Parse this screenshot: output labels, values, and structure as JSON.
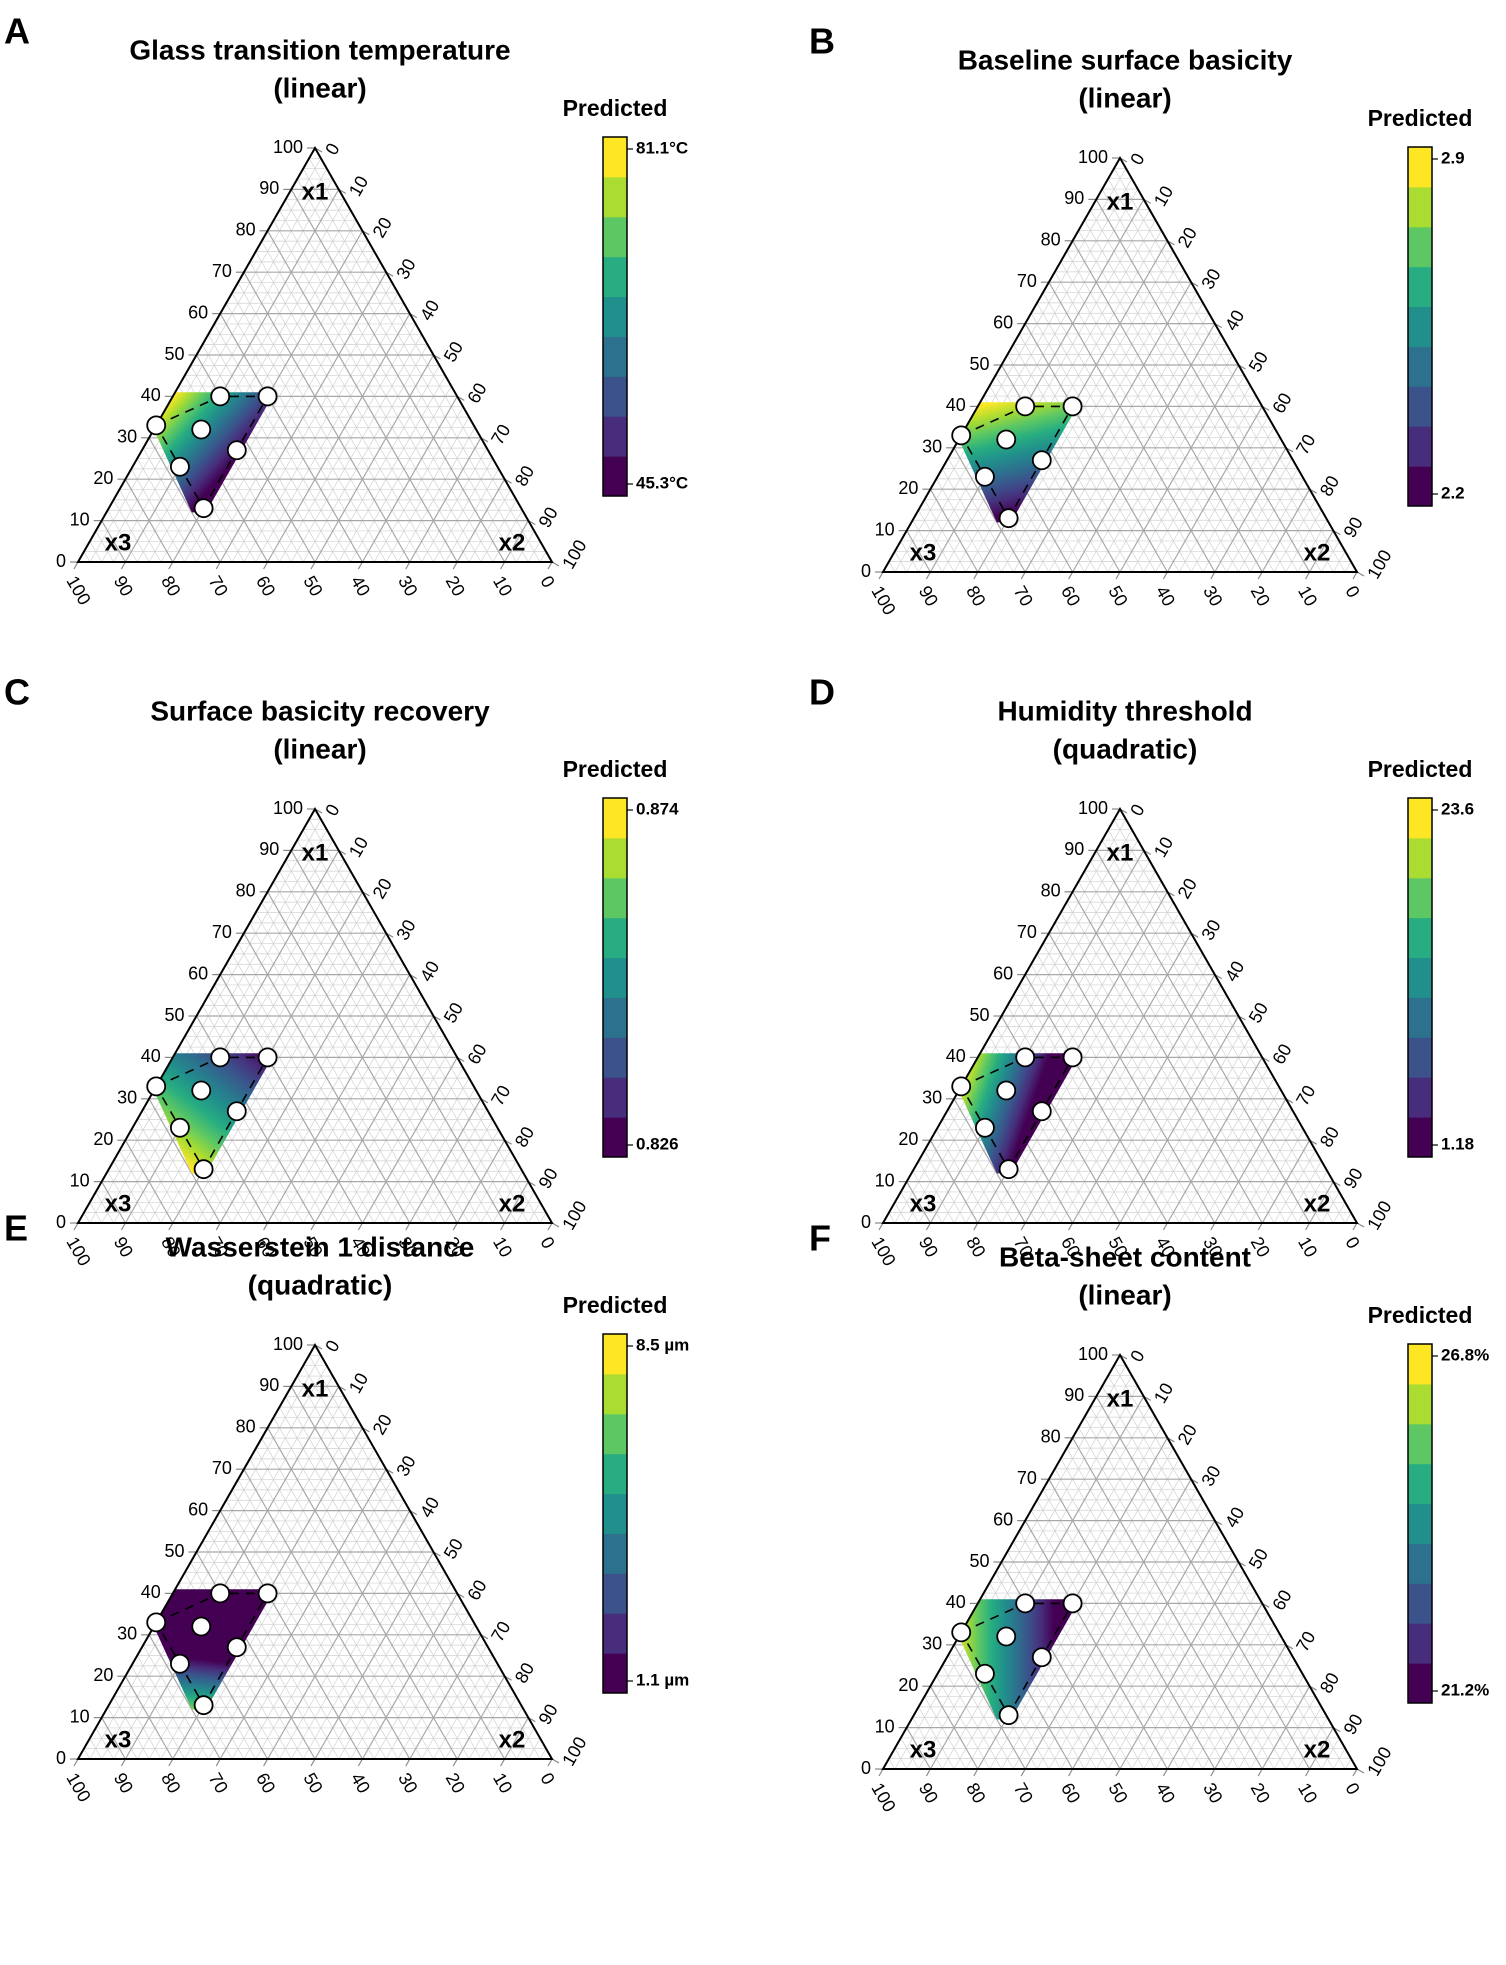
{
  "chart_data": [
    {
      "type": "ternary",
      "panel": "A",
      "title": "Glass transition temperature",
      "subtitle": "(linear)",
      "axes": [
        {
          "label": "x1",
          "ticks": [
            0,
            10,
            20,
            30,
            40,
            50,
            60,
            70,
            80,
            90,
            100
          ]
        },
        {
          "label": "x2",
          "ticks": [
            0,
            10,
            20,
            30,
            40,
            50,
            60,
            70,
            80,
            90,
            100
          ]
        },
        {
          "label": "x3",
          "ticks": [
            0,
            10,
            20,
            30,
            40,
            50,
            60,
            70,
            80,
            90,
            100
          ]
        }
      ],
      "points": {
        "x1": [
          40,
          40,
          33,
          32,
          23,
          27,
          13
        ],
        "x2": [
          10,
          20,
          0,
          10,
          10,
          20,
          20
        ],
        "x3": [
          50,
          40,
          67,
          58,
          67,
          53,
          67
        ]
      },
      "surface": {
        "region": {
          "x1": [
            41,
            41,
            12,
            12,
            32
          ],
          "x2": [
            0,
            21,
            21,
            18,
            0
          ],
          "x3": [
            59,
            38,
            67,
            70,
            68
          ]
        },
        "low_at": [
          26,
          21,
          53
        ],
        "high_at": [
          40,
          0,
          60
        ]
      },
      "colorbar": {
        "title": "Predicted",
        "ticks": [
          {
            "value": 45.3,
            "label": "45.3°C"
          },
          {
            "value": 81.1,
            "label": "81.1°C"
          }
        ],
        "colors": [
          "#440154",
          "#472d7b",
          "#3b528b",
          "#2c728e",
          "#21908c",
          "#27ad81",
          "#5dc863",
          "#aadc32",
          "#fde725"
        ]
      }
    },
    {
      "type": "ternary",
      "panel": "B",
      "title": "Baseline surface basicity",
      "subtitle": "(linear)",
      "axes": [
        {
          "label": "x1",
          "ticks": [
            0,
            10,
            20,
            30,
            40,
            50,
            60,
            70,
            80,
            90,
            100
          ]
        },
        {
          "label": "x2",
          "ticks": [
            0,
            10,
            20,
            30,
            40,
            50,
            60,
            70,
            80,
            90,
            100
          ]
        },
        {
          "label": "x3",
          "ticks": [
            0,
            10,
            20,
            30,
            40,
            50,
            60,
            70,
            80,
            90,
            100
          ]
        }
      ],
      "points": {
        "x1": [
          40,
          40,
          33,
          32,
          23,
          27,
          13
        ],
        "x2": [
          10,
          20,
          0,
          10,
          10,
          20,
          20
        ],
        "x3": [
          50,
          40,
          67,
          58,
          67,
          53,
          67
        ]
      },
      "surface": {
        "region": {
          "x1": [
            41,
            41,
            12,
            12,
            32
          ],
          "x2": [
            0,
            21,
            21,
            18,
            0
          ],
          "x3": [
            59,
            38,
            67,
            70,
            68
          ]
        },
        "low_at": [
          14,
          19,
          67
        ],
        "high_at": [
          40,
          0,
          60
        ]
      },
      "colorbar": {
        "title": "Predicted",
        "ticks": [
          2.2,
          2.9
        ],
        "colors": [
          "#440154",
          "#472d7b",
          "#3b528b",
          "#2c728e",
          "#21908c",
          "#27ad81",
          "#5dc863",
          "#aadc32",
          "#fde725"
        ]
      }
    },
    {
      "type": "ternary",
      "panel": "C",
      "title": "Surface basicity recovery",
      "subtitle": "(linear)",
      "axes": [
        {
          "label": "x1",
          "ticks": [
            0,
            10,
            20,
            30,
            40,
            50,
            60,
            70,
            80,
            90,
            100
          ]
        },
        {
          "label": "x2",
          "ticks": [
            0,
            10,
            20,
            30,
            40,
            50,
            60,
            70,
            80,
            90,
            100
          ]
        },
        {
          "label": "x3",
          "ticks": [
            0,
            10,
            20,
            30,
            40,
            50,
            60,
            70,
            80,
            90,
            100
          ]
        }
      ],
      "points": {
        "x1": [
          40,
          40,
          33,
          32,
          23,
          27,
          13
        ],
        "x2": [
          10,
          20,
          0,
          10,
          10,
          20,
          20
        ],
        "x3": [
          50,
          40,
          67,
          58,
          67,
          53,
          67
        ]
      },
      "surface": {
        "region": {
          "x1": [
            41,
            41,
            12,
            12,
            32
          ],
          "x2": [
            0,
            21,
            21,
            18,
            0
          ],
          "x3": [
            59,
            38,
            67,
            70,
            68
          ]
        },
        "low_at": [
          40,
          21,
          39
        ],
        "high_at": [
          14,
          16,
          70
        ]
      },
      "colorbar": {
        "title": "Predicted",
        "ticks": [
          0.826,
          0.874
        ],
        "colors": [
          "#440154",
          "#472d7b",
          "#3b528b",
          "#2c728e",
          "#21908c",
          "#27ad81",
          "#5dc863",
          "#aadc32",
          "#fde725"
        ]
      }
    },
    {
      "type": "ternary",
      "panel": "D",
      "title": "Humidity threshold",
      "subtitle": "(quadratic)",
      "axes": [
        {
          "label": "x1",
          "ticks": [
            0,
            10,
            20,
            30,
            40,
            50,
            60,
            70,
            80,
            90,
            100
          ]
        },
        {
          "label": "x2",
          "ticks": [
            0,
            10,
            20,
            30,
            40,
            50,
            60,
            70,
            80,
            90,
            100
          ]
        },
        {
          "label": "x3",
          "ticks": [
            0,
            10,
            20,
            30,
            40,
            50,
            60,
            70,
            80,
            90,
            100
          ]
        }
      ],
      "points": {
        "x1": [
          40,
          40,
          33,
          32,
          23,
          27,
          13
        ],
        "x2": [
          10,
          20,
          0,
          10,
          10,
          20,
          20
        ],
        "x3": [
          50,
          40,
          67,
          58,
          67,
          53,
          67
        ]
      },
      "surface": {
        "region": {
          "x1": [
            41,
            41,
            12,
            12,
            32
          ],
          "x2": [
            0,
            21,
            21,
            18,
            0
          ],
          "x3": [
            59,
            38,
            67,
            70,
            68
          ]
        },
        "low_at": [
          24,
          18,
          58
        ],
        "high_at": [
          30,
          0,
          70
        ]
      },
      "colorbar": {
        "title": "Predicted",
        "ticks": [
          1.18,
          23.6
        ],
        "colors": [
          "#440154",
          "#472d7b",
          "#3b528b",
          "#2c728e",
          "#21908c",
          "#27ad81",
          "#5dc863",
          "#aadc32",
          "#fde725"
        ]
      }
    },
    {
      "type": "ternary",
      "panel": "E",
      "title": "Wasserstein 1 distance",
      "subtitle": "(quadratic)",
      "axes": [
        {
          "label": "x1",
          "ticks": [
            0,
            10,
            20,
            30,
            40,
            50,
            60,
            70,
            80,
            90,
            100
          ]
        },
        {
          "label": "x2",
          "ticks": [
            0,
            10,
            20,
            30,
            40,
            50,
            60,
            70,
            80,
            90,
            100
          ]
        },
        {
          "label": "x3",
          "ticks": [
            0,
            10,
            20,
            30,
            40,
            50,
            60,
            70,
            80,
            90,
            100
          ]
        }
      ],
      "points": {
        "x1": [
          40,
          40,
          33,
          32,
          23,
          27,
          13
        ],
        "x2": [
          10,
          20,
          0,
          10,
          10,
          20,
          20
        ],
        "x3": [
          50,
          40,
          67,
          58,
          67,
          53,
          67
        ]
      },
      "surface": {
        "region": {
          "x1": [
            41,
            41,
            12,
            12,
            32
          ],
          "x2": [
            0,
            21,
            21,
            18,
            0
          ],
          "x3": [
            59,
            38,
            67,
            70,
            68
          ]
        },
        "low_at": [
          24,
          14,
          62
        ],
        "high_at": [
          9,
          20,
          71
        ]
      },
      "colorbar": {
        "title": "Predicted",
        "ticks": [
          {
            "value": 1.1,
            "label": "1.1 µm"
          },
          {
            "value": 8.5,
            "label": "8.5 µm"
          }
        ],
        "colors": [
          "#440154",
          "#472d7b",
          "#3b528b",
          "#2c728e",
          "#21908c",
          "#27ad81",
          "#5dc863",
          "#aadc32",
          "#fde725"
        ]
      }
    },
    {
      "type": "ternary",
      "panel": "F",
      "title": "Beta-sheet content",
      "subtitle": "(linear)",
      "axes": [
        {
          "label": "x1",
          "ticks": [
            0,
            10,
            20,
            30,
            40,
            50,
            60,
            70,
            80,
            90,
            100
          ]
        },
        {
          "label": "x2",
          "ticks": [
            0,
            10,
            20,
            30,
            40,
            50,
            60,
            70,
            80,
            90,
            100
          ]
        },
        {
          "label": "x3",
          "ticks": [
            0,
            10,
            20,
            30,
            40,
            50,
            60,
            70,
            80,
            90,
            100
          ]
        }
      ],
      "points": {
        "x1": [
          40,
          40,
          33,
          32,
          23,
          27,
          13
        ],
        "x2": [
          10,
          20,
          0,
          10,
          10,
          20,
          20
        ],
        "x3": [
          50,
          40,
          67,
          58,
          67,
          53,
          67
        ]
      },
      "surface": {
        "region": {
          "x1": [
            41,
            41,
            12,
            12,
            32
          ],
          "x2": [
            0,
            21,
            21,
            18,
            0
          ],
          "x3": [
            59,
            38,
            67,
            70,
            68
          ]
        },
        "low_at": [
          30,
          21,
          49
        ],
        "high_at": [
          30,
          0,
          70
        ]
      },
      "colorbar": {
        "title": "Predicted",
        "ticks": [
          {
            "value": 21.2,
            "label": "21.2%"
          },
          {
            "value": 26.8,
            "label": "26.8%"
          }
        ],
        "colors": [
          "#440154",
          "#472d7b",
          "#3b528b",
          "#2c728e",
          "#21908c",
          "#27ad81",
          "#5dc863",
          "#aadc32",
          "#fde725"
        ]
      }
    }
  ]
}
